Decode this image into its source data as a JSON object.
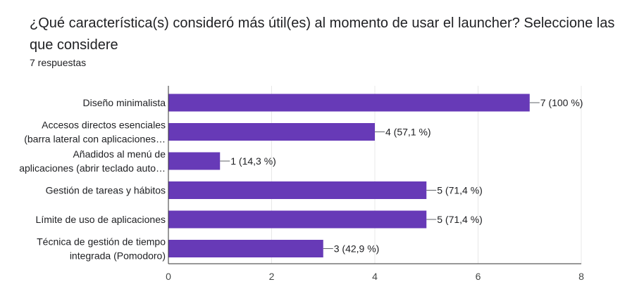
{
  "question": "¿Qué característica(s) consideró más útil(es) al momento de usar el launcher? Seleccione las que considere",
  "responses_label": "7 respuestas",
  "colors": {
    "bar": "#673ab7",
    "grid": "#e8e8e8",
    "axis": "#3c4043",
    "text": "#202124"
  },
  "chart_data": {
    "type": "bar",
    "orientation": "horizontal",
    "categories": [
      [
        "Diseño minimalista"
      ],
      [
        "Accesos directos esenciales",
        "(barra lateral con aplicaciones…"
      ],
      [
        "Añadidos al menú de",
        "aplicaciones (abrir teclado auto…"
      ],
      [
        "Gestión de tareas y hábitos"
      ],
      [
        "Límite de uso de aplicaciones"
      ],
      [
        "Técnica de gestión de tiempo",
        "integrada (Pomodoro)"
      ]
    ],
    "values": [
      7,
      4,
      1,
      5,
      5,
      3
    ],
    "data_labels": [
      "7 (100 %)",
      "4 (57,1 %)",
      "1 (14,3 %)",
      "5 (71,4 %)",
      "5 (71,4 %)",
      "3 (42,9 %)"
    ],
    "xlim": [
      0,
      8
    ],
    "xticks": [
      "0",
      "2",
      "4",
      "6",
      "8"
    ],
    "grid": true
  }
}
